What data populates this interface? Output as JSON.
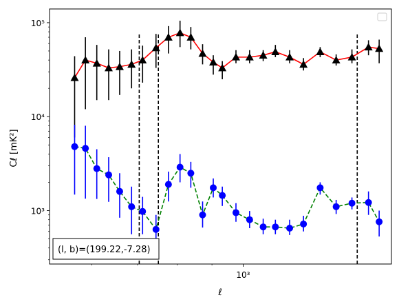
{
  "chart_data": {
    "type": "scatter",
    "xscale": "log",
    "yscale": "log",
    "xlim": [
      520,
      1650
    ],
    "ylim": [
      270,
      140000
    ],
    "xlabel": "ℓ",
    "ylabel": "Cℓ  [mK²]",
    "x_ticks": [
      {
        "value": 1000,
        "label": "10³"
      }
    ],
    "y_ticks": [
      {
        "value": 1000,
        "label": "10³"
      },
      {
        "value": 10000,
        "label": "10⁴"
      },
      {
        "value": 100000,
        "label": "10⁵"
      }
    ],
    "legend": {
      "position": "top-right",
      "entries": []
    },
    "annotation": "(l, b)=(199.22,-7.28)",
    "vertical_lines": [
      704,
      751,
      1470
    ],
    "series": [
      {
        "marker": "triangle",
        "marker_color": "#000000",
        "errorbar_color": "#000000",
        "line_color": "#ff0000",
        "line_style": "solid",
        "points": [
          {
            "x": 566,
            "y": 26000,
            "lo": 6000,
            "hi": 44000
          },
          {
            "x": 587,
            "y": 40000,
            "lo": 12000,
            "hi": 70000
          },
          {
            "x": 610,
            "y": 37000,
            "lo": 15000,
            "hi": 58000
          },
          {
            "x": 635,
            "y": 33000,
            "lo": 15000,
            "hi": 52000
          },
          {
            "x": 659,
            "y": 34000,
            "lo": 17000,
            "hi": 50000
          },
          {
            "x": 686,
            "y": 36000,
            "lo": 20000,
            "hi": 52000
          },
          {
            "x": 712,
            "y": 40000,
            "lo": 23000,
            "hi": 57000
          },
          {
            "x": 745,
            "y": 54000,
            "lo": 33000,
            "hi": 76000
          },
          {
            "x": 777,
            "y": 70000,
            "lo": 47000,
            "hi": 92000
          },
          {
            "x": 808,
            "y": 78000,
            "lo": 55000,
            "hi": 105000
          },
          {
            "x": 838,
            "y": 70000,
            "lo": 52000,
            "hi": 90000
          },
          {
            "x": 872,
            "y": 47000,
            "lo": 36000,
            "hi": 59000
          },
          {
            "x": 904,
            "y": 38000,
            "lo": 28000,
            "hi": 45000
          },
          {
            "x": 932,
            "y": 33000,
            "lo": 25000,
            "hi": 39000
          },
          {
            "x": 976,
            "y": 43000,
            "lo": 37000,
            "hi": 51000
          },
          {
            "x": 1022,
            "y": 43000,
            "lo": 37000,
            "hi": 51000
          },
          {
            "x": 1070,
            "y": 45000,
            "lo": 39000,
            "hi": 51000
          },
          {
            "x": 1115,
            "y": 49000,
            "lo": 43000,
            "hi": 58000
          },
          {
            "x": 1170,
            "y": 43000,
            "lo": 37000,
            "hi": 51000
          },
          {
            "x": 1226,
            "y": 36000,
            "lo": 31000,
            "hi": 42000
          },
          {
            "x": 1297,
            "y": 49000,
            "lo": 43000,
            "hi": 55000
          },
          {
            "x": 1369,
            "y": 40000,
            "lo": 35000,
            "hi": 46000
          },
          {
            "x": 1444,
            "y": 43000,
            "lo": 37000,
            "hi": 52000
          },
          {
            "x": 1527,
            "y": 55000,
            "lo": 45000,
            "hi": 65000
          },
          {
            "x": 1583,
            "y": 53000,
            "lo": 37000,
            "hi": 66000
          }
        ]
      },
      {
        "marker": "circle",
        "marker_color": "#0000ff",
        "errorbar_color": "#0000ff",
        "line_color": "#008000",
        "line_style": "dashed",
        "points": [
          {
            "x": 566,
            "y": 4800,
            "lo": 1480,
            "hi": 8200
          },
          {
            "x": 587,
            "y": 4600,
            "lo": 1340,
            "hi": 8000
          },
          {
            "x": 610,
            "y": 2800,
            "lo": 1330,
            "hi": 4500
          },
          {
            "x": 635,
            "y": 2400,
            "lo": 1240,
            "hi": 3700
          },
          {
            "x": 659,
            "y": 1600,
            "lo": 840,
            "hi": 2500
          },
          {
            "x": 686,
            "y": 1100,
            "lo": 560,
            "hi": 1800
          },
          {
            "x": 712,
            "y": 980,
            "lo": 560,
            "hi": 1400
          },
          {
            "x": 745,
            "y": 630,
            "lo": 390,
            "hi": 900
          },
          {
            "x": 777,
            "y": 1900,
            "lo": 1250,
            "hi": 2600
          },
          {
            "x": 808,
            "y": 2900,
            "lo": 2000,
            "hi": 4000
          },
          {
            "x": 838,
            "y": 2500,
            "lo": 1750,
            "hi": 3300
          },
          {
            "x": 872,
            "y": 900,
            "lo": 660,
            "hi": 1250
          },
          {
            "x": 904,
            "y": 1750,
            "lo": 1380,
            "hi": 2200
          },
          {
            "x": 932,
            "y": 1450,
            "lo": 1120,
            "hi": 1800
          },
          {
            "x": 976,
            "y": 950,
            "lo": 760,
            "hi": 1200
          },
          {
            "x": 1022,
            "y": 800,
            "lo": 650,
            "hi": 990
          },
          {
            "x": 1070,
            "y": 670,
            "lo": 560,
            "hi": 820
          },
          {
            "x": 1115,
            "y": 670,
            "lo": 560,
            "hi": 800
          },
          {
            "x": 1170,
            "y": 650,
            "lo": 550,
            "hi": 800
          },
          {
            "x": 1226,
            "y": 720,
            "lo": 600,
            "hi": 880
          },
          {
            "x": 1297,
            "y": 1750,
            "lo": 1480,
            "hi": 2000
          },
          {
            "x": 1369,
            "y": 1100,
            "lo": 920,
            "hi": 1300
          },
          {
            "x": 1444,
            "y": 1200,
            "lo": 1030,
            "hi": 1380
          },
          {
            "x": 1527,
            "y": 1220,
            "lo": 900,
            "hi": 1600
          },
          {
            "x": 1583,
            "y": 760,
            "lo": 530,
            "hi": 1000
          }
        ]
      }
    ]
  }
}
